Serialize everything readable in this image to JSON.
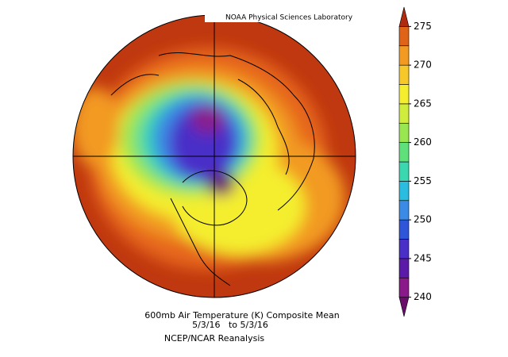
{
  "header": {
    "lab": "NOAA Physical Sciences Laboratory"
  },
  "caption": {
    "line1": "600mb Air Temperature (K) Composite Mean",
    "line2": "5/3/16   to 5/3/16",
    "line3": "NCEP/NCAR Reanalysis"
  },
  "colorbar": {
    "lim": [
      237.5,
      277.5
    ],
    "ticks": [
      240,
      245,
      250,
      255,
      260,
      265,
      270,
      275
    ],
    "colors": [
      "#6a0d6a",
      "#8a1a8a",
      "#5b1aa8",
      "#4a2ec8",
      "#2f55d8",
      "#3a8ae6",
      "#2bbde0",
      "#3ad8b0",
      "#5fe07a",
      "#9ae650",
      "#d0ec3c",
      "#f4ee2e",
      "#f6c82a",
      "#f29a22",
      "#e06418",
      "#b02a10"
    ]
  }
}
